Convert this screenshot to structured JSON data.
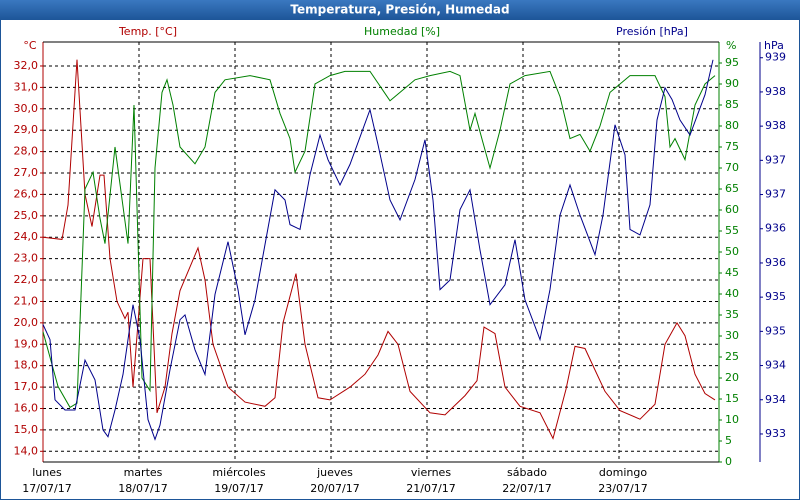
{
  "chart_data": {
    "type": "line",
    "title": "Temperatura, Presión, Humedad",
    "ylabel": "°C",
    "y2label": "%",
    "y3label": "hPa",
    "xlim": [
      0,
      169
    ],
    "xticks": [
      {
        "value": 0,
        "label": "lunes"
      },
      {
        "value": 24,
        "label": "martes"
      },
      {
        "value": 48,
        "label": "miércoles"
      },
      {
        "value": 72,
        "label": "jueves"
      },
      {
        "value": 96,
        "label": "viernes"
      },
      {
        "value": 120,
        "label": "sábado"
      },
      {
        "value": 144,
        "label": "domingo"
      }
    ],
    "xtick_dates": [
      "17/07/17",
      "18/07/17",
      "19/07/17",
      "20/07/17",
      "21/07/17",
      "22/07/17",
      "23/07/17"
    ],
    "ylim": [
      13.5,
      33.12
    ],
    "yticks": [
      {
        "value": 14,
        "label": "14,0"
      },
      {
        "value": 15,
        "label": "15,0"
      },
      {
        "value": 16,
        "label": "16,0"
      },
      {
        "value": 17,
        "label": "17,0"
      },
      {
        "value": 18,
        "label": "18,0"
      },
      {
        "value": 19,
        "label": "19,0"
      },
      {
        "value": 20,
        "label": "20,0"
      },
      {
        "value": 21,
        "label": "21,0"
      },
      {
        "value": 22,
        "label": "22,0"
      },
      {
        "value": 23,
        "label": "23,0"
      },
      {
        "value": 24,
        "label": "24,0"
      },
      {
        "value": 25,
        "label": "25,0"
      },
      {
        "value": 26,
        "label": "26,0"
      },
      {
        "value": 27,
        "label": "27,0"
      },
      {
        "value": 28,
        "label": "28,0"
      },
      {
        "value": 29,
        "label": "29,0"
      },
      {
        "value": 30,
        "label": "30,0"
      },
      {
        "value": 31,
        "label": "31,0"
      },
      {
        "value": 32,
        "label": "32,0"
      }
    ],
    "y2lim": [
      0,
      100
    ],
    "y2ticks": [
      0,
      5,
      10,
      15,
      20,
      25,
      30,
      35,
      40,
      45,
      50,
      55,
      60,
      65,
      70,
      75,
      80,
      85,
      90,
      95
    ],
    "y3lim": [
      932.79,
      938.93
    ],
    "y3ticks": [
      {
        "value": 933.2,
        "label": "933"
      },
      {
        "value": 933.7,
        "label": "934"
      },
      {
        "value": 934.2,
        "label": "934"
      },
      {
        "value": 934.7,
        "label": "935"
      },
      {
        "value": 935.2,
        "label": "935"
      },
      {
        "value": 935.7,
        "label": "936"
      },
      {
        "value": 936.2,
        "label": "936"
      },
      {
        "value": 936.7,
        "label": "937"
      },
      {
        "value": 937.2,
        "label": "937"
      },
      {
        "value": 937.7,
        "label": "938"
      },
      {
        "value": 938.2,
        "label": "938"
      },
      {
        "value": 938.7,
        "label": "939"
      }
    ],
    "grid": true,
    "series": [
      {
        "name": "Temp. [°C]",
        "color": "#b00000",
        "axis": "y",
        "x": [
          0,
          4.75,
          6.25,
          8.5,
          10.5,
          12.25,
          14.25,
          15.25,
          16.75,
          18.5,
          20.5,
          21.25,
          22.5,
          23.75,
          25,
          26.75,
          28.5,
          30.5,
          32.25,
          34.25,
          38.75,
          40.5,
          42.5,
          46.25,
          50.5,
          55.5,
          58,
          60,
          63.25,
          65.5,
          68.75,
          71.75,
          76.75,
          80.5,
          83.75,
          86.25,
          88.75,
          91.75,
          96.75,
          100.5,
          105.5,
          108.5,
          110.25,
          113,
          115.5,
          119.25,
          124.25,
          127.5,
          130.75,
          133,
          135.5,
          138,
          140.5,
          144.25,
          149.25,
          153,
          155.5,
          158.5,
          160.5,
          163,
          165.5,
          168
        ],
        "values": [
          24.0,
          23.9,
          25.5,
          32.3,
          26,
          24.5,
          26.9,
          26.9,
          23,
          21,
          20.2,
          20.5,
          17,
          20,
          23,
          23,
          15.8,
          17,
          19.5,
          21.5,
          23.5,
          22,
          19,
          17,
          16.3,
          16.1,
          16.5,
          20,
          22.3,
          19,
          16.5,
          16.4,
          17,
          17.6,
          18.5,
          19.6,
          19.0,
          16.8,
          15.8,
          15.7,
          16.6,
          17.3,
          19.8,
          19.5,
          17,
          16.1,
          15.8,
          14.6,
          16.9,
          18.9,
          18.8,
          17.8,
          16.8,
          15.9,
          15.5,
          16.2,
          19.0,
          20.0,
          19.4,
          17.6,
          16.7,
          16.4
        ]
      },
      {
        "name": "Humedad [%]",
        "color": "#008000",
        "axis": "y2",
        "x": [
          0,
          3.75,
          6.75,
          8.5,
          10.5,
          12.5,
          14.25,
          15.5,
          18,
          21.25,
          22.75,
          24.75,
          26.75,
          28,
          29.75,
          31,
          32.5,
          34.25,
          38,
          40.5,
          43,
          45.5,
          51.75,
          56.75,
          59.25,
          61.75,
          63,
          65.5,
          68,
          71.75,
          75.5,
          81.75,
          86.75,
          89.25,
          93,
          96.75,
          101.75,
          104.25,
          106.75,
          108,
          110,
          111.75,
          114.25,
          116.75,
          120.5,
          126.75,
          129.25,
          131.75,
          134.25,
          136.75,
          139.25,
          141.75,
          146.75,
          153,
          155.5,
          156.75,
          158,
          160.5,
          163,
          165.5,
          168
        ],
        "values": [
          31,
          18,
          13,
          14,
          65,
          69,
          58,
          52,
          75,
          52,
          85,
          20,
          17,
          70,
          88,
          91,
          85,
          75,
          71,
          75,
          88,
          91,
          92,
          91,
          83,
          77,
          69,
          74,
          90,
          92,
          93,
          93,
          86,
          88,
          91,
          92,
          93,
          92,
          79,
          83,
          76,
          70,
          79,
          90,
          92,
          93,
          87,
          77,
          78,
          74,
          80,
          88,
          92,
          92,
          87,
          75,
          77,
          72,
          85,
          90,
          92
        ]
      },
      {
        "name": "Presión [hPa]",
        "color": "#00008b",
        "axis": "y3",
        "x": [
          0,
          1.75,
          3,
          5.5,
          8,
          10.5,
          13,
          15,
          16.25,
          18,
          20,
          22.5,
          24.25,
          26.25,
          28,
          29.25,
          31.75,
          34.25,
          35.5,
          38,
          40.5,
          43,
          46.25,
          48.75,
          50.5,
          53,
          55.5,
          58,
          60.5,
          61.75,
          64.25,
          66.75,
          69.25,
          71.25,
          74.25,
          76.75,
          81.75,
          83.75,
          86.75,
          89.25,
          93,
          95.5,
          97.5,
          99.25,
          101.75,
          104.25,
          106.75,
          109.25,
          111.75,
          115.5,
          118,
          120.5,
          124.25,
          126.75,
          129.25,
          131.75,
          134.25,
          138,
          140,
          143,
          145.5,
          146.75,
          149.25,
          151.75,
          153.5,
          155.5,
          157.25,
          159.25,
          161.75,
          165.5,
          167.5
        ],
        "values": [
          934.8,
          934.58,
          933.7,
          933.55,
          933.55,
          934.28,
          933.99,
          933.26,
          933.16,
          933.55,
          934.07,
          935.09,
          934.58,
          933.41,
          933.12,
          933.33,
          934.14,
          934.87,
          934.94,
          934.43,
          934.07,
          935.24,
          936.01,
          935.31,
          934.65,
          935.16,
          935.97,
          936.77,
          936.62,
          936.26,
          936.19,
          936.99,
          937.57,
          937.21,
          936.84,
          937.14,
          937.94,
          937.43,
          936.62,
          936.33,
          936.92,
          937.5,
          936.62,
          935.31,
          935.45,
          936.48,
          936.77,
          935.89,
          935.09,
          935.38,
          936.04,
          935.16,
          934.58,
          935.31,
          936.4,
          936.84,
          936.4,
          935.82,
          936.4,
          937.72,
          937.28,
          936.19,
          936.11,
          936.55,
          937.79,
          938.26,
          938.09,
          937.79,
          937.57,
          938.16,
          938.67
        ]
      }
    ]
  }
}
